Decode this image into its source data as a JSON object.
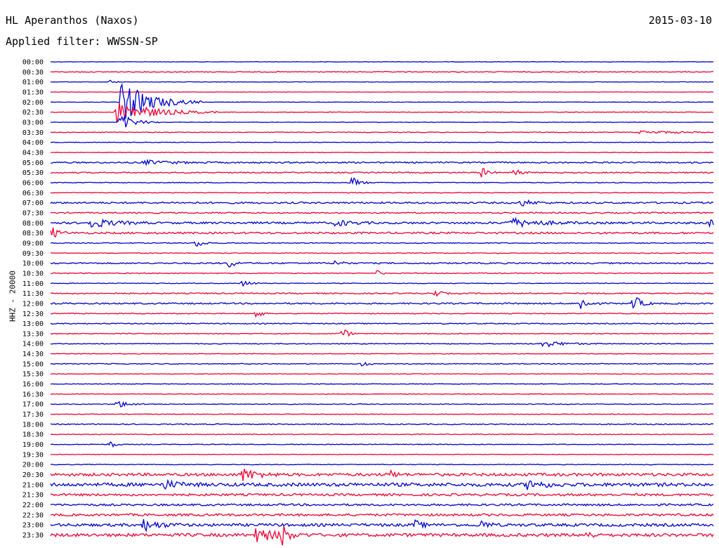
{
  "header": {
    "station": "HL Aperanthos (Naxos)",
    "filter": "Applied filter: WWSSN-SP",
    "date": "2015-03-10"
  },
  "chart_data": {
    "type": "line",
    "title": "HL Aperanthos (Naxos)",
    "subtitle": "Applied filter: WWSSN-SP",
    "date": "2015-03-10",
    "ylabel": "HHZ - 20000",
    "rows": [
      "00:00",
      "00:30",
      "01:00",
      "01:30",
      "02:00",
      "02:30",
      "03:00",
      "03:30",
      "04:00",
      "04:30",
      "05:00",
      "05:30",
      "06:00",
      "06:30",
      "07:00",
      "07:30",
      "08:00",
      "08:30",
      "09:00",
      "09:30",
      "10:00",
      "10:30",
      "11:00",
      "11:30",
      "12:00",
      "12:30",
      "13:00",
      "13:30",
      "14:00",
      "14:30",
      "15:00",
      "15:30",
      "16:00",
      "16:30",
      "17:00",
      "17:30",
      "18:00",
      "18:30",
      "19:00",
      "19:30",
      "20:00",
      "20:30",
      "21:00",
      "21:30",
      "22:00",
      "22:30",
      "23:00",
      "23:30"
    ],
    "series_colors": [
      "#0000cc",
      "#ee0033"
    ],
    "row_noise": [
      0.3,
      0.6,
      0.3,
      0.2,
      0.3,
      0.4,
      0.3,
      0.5,
      0.4,
      0.4,
      1.0,
      0.8,
      0.6,
      0.5,
      1.2,
      0.9,
      1.4,
      1.3,
      0.6,
      0.5,
      1.0,
      0.6,
      0.5,
      0.8,
      1.0,
      0.6,
      0.7,
      0.6,
      0.6,
      0.4,
      0.6,
      0.4,
      0.4,
      0.4,
      0.5,
      0.4,
      0.7,
      0.5,
      0.5,
      0.4,
      0.5,
      2.0,
      2.4,
      1.6,
      1.4,
      1.6,
      2.0,
      2.2
    ],
    "events": [
      {
        "row": 2,
        "x": 0.09,
        "amp": 3,
        "dur": 0.006
      },
      {
        "row": 4,
        "x": 0.107,
        "amp": 30,
        "dur": 0.04
      },
      {
        "row": 5,
        "x": 0.1,
        "amp": 16,
        "dur": 0.05
      },
      {
        "row": 6,
        "x": 0.105,
        "amp": 12,
        "dur": 0.02
      },
      {
        "row": 7,
        "x": 0.89,
        "amp": 2,
        "dur": 0.06
      },
      {
        "row": 10,
        "x": 0.14,
        "amp": 3,
        "dur": 0.04
      },
      {
        "row": 11,
        "x": 0.65,
        "amp": 8,
        "dur": 0.008
      },
      {
        "row": 11,
        "x": 0.7,
        "amp": 7,
        "dur": 0.008
      },
      {
        "row": 12,
        "x": 0.455,
        "amp": 8,
        "dur": 0.01
      },
      {
        "row": 14,
        "x": 0.71,
        "amp": 5,
        "dur": 0.015
      },
      {
        "row": 16,
        "x": 0.06,
        "amp": 7,
        "dur": 0.03
      },
      {
        "row": 16,
        "x": 0.43,
        "amp": 5,
        "dur": 0.02
      },
      {
        "row": 16,
        "x": 0.69,
        "amp": 7,
        "dur": 0.04
      },
      {
        "row": 16,
        "x": 0.995,
        "amp": 6,
        "dur": 0.01
      },
      {
        "row": 17,
        "x": 0.002,
        "amp": 8,
        "dur": 0.01
      },
      {
        "row": 18,
        "x": 0.22,
        "amp": 6,
        "dur": 0.01
      },
      {
        "row": 20,
        "x": 0.27,
        "amp": 7,
        "dur": 0.008
      },
      {
        "row": 20,
        "x": 0.43,
        "amp": 5,
        "dur": 0.008
      },
      {
        "row": 21,
        "x": 0.49,
        "amp": 6,
        "dur": 0.006
      },
      {
        "row": 22,
        "x": 0.29,
        "amp": 5,
        "dur": 0.01
      },
      {
        "row": 23,
        "x": 0.58,
        "amp": 6,
        "dur": 0.008
      },
      {
        "row": 24,
        "x": 0.8,
        "amp": 10,
        "dur": 0.01
      },
      {
        "row": 24,
        "x": 0.88,
        "amp": 12,
        "dur": 0.01
      },
      {
        "row": 25,
        "x": 0.31,
        "amp": 10,
        "dur": 0.006
      },
      {
        "row": 27,
        "x": 0.44,
        "amp": 9,
        "dur": 0.008
      },
      {
        "row": 28,
        "x": 0.74,
        "amp": 5,
        "dur": 0.03
      },
      {
        "row": 30,
        "x": 0.47,
        "amp": 4,
        "dur": 0.006
      },
      {
        "row": 34,
        "x": 0.1,
        "amp": 6,
        "dur": 0.015
      },
      {
        "row": 38,
        "x": 0.09,
        "amp": 7,
        "dur": 0.006
      },
      {
        "row": 41,
        "x": 0.29,
        "amp": 9,
        "dur": 0.02
      },
      {
        "row": 41,
        "x": 0.51,
        "amp": 7,
        "dur": 0.008
      },
      {
        "row": 42,
        "x": 0.17,
        "amp": 6,
        "dur": 0.02
      },
      {
        "row": 42,
        "x": 0.72,
        "amp": 7,
        "dur": 0.02
      },
      {
        "row": 46,
        "x": 0.14,
        "amp": 8,
        "dur": 0.02
      },
      {
        "row": 46,
        "x": 0.55,
        "amp": 6,
        "dur": 0.01
      },
      {
        "row": 46,
        "x": 0.65,
        "amp": 6,
        "dur": 0.01
      },
      {
        "row": 47,
        "x": 0.31,
        "amp": 9,
        "dur": 0.03
      },
      {
        "row": 47,
        "x": 0.35,
        "amp": 16,
        "dur": 0.006
      },
      {
        "row": 47,
        "x": 0.81,
        "amp": 8,
        "dur": 0.006
      }
    ]
  }
}
